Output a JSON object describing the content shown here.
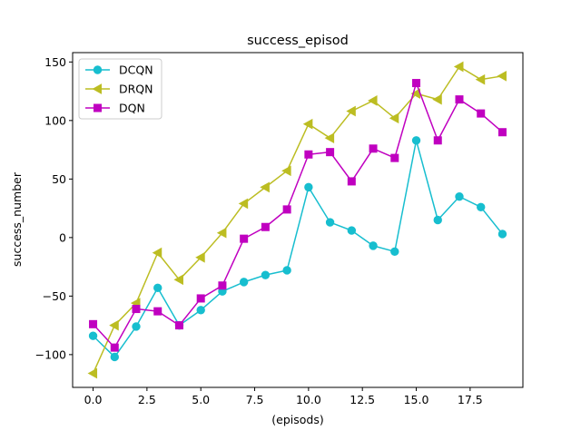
{
  "chart_data": {
    "type": "line",
    "title": "success_episod",
    "xlabel": "(episods)",
    "ylabel": "success_number",
    "x": [
      0,
      1,
      2,
      3,
      4,
      5,
      6,
      7,
      8,
      9,
      10,
      11,
      12,
      13,
      14,
      15,
      16,
      17,
      18,
      19
    ],
    "xlim": [
      -0.95,
      19.95
    ],
    "ylim": [
      -128,
      158
    ],
    "xticks": [
      0,
      2.5,
      5,
      7.5,
      10,
      12.5,
      15,
      17.5
    ],
    "xtick_labels": [
      "0.0",
      "2.5",
      "5.0",
      "7.5",
      "10.0",
      "12.5",
      "15.0",
      "17.5"
    ],
    "yticks": [
      -100,
      -50,
      0,
      50,
      100,
      150
    ],
    "ytick_labels": [
      "−100",
      "−50",
      "0",
      "50",
      "100",
      "150"
    ],
    "grid": false,
    "legend_position": "top-left",
    "series": [
      {
        "name": "DCQN",
        "color": "#17becf",
        "marker": "circle",
        "values": [
          -84,
          -102,
          -76,
          -43,
          -75,
          -62,
          -46,
          -38,
          -32,
          -28,
          43,
          13,
          6,
          -7,
          -12,
          83,
          15,
          35,
          26,
          3
        ]
      },
      {
        "name": "DRQN",
        "color": "#bcbd22",
        "marker": "triangle-left",
        "values": [
          -116,
          -75,
          -56,
          -13,
          -36,
          -17,
          4,
          29,
          43,
          57,
          97,
          85,
          108,
          117,
          102,
          123,
          118,
          146,
          135,
          138
        ]
      },
      {
        "name": "DQN",
        "color": "#c000c0",
        "marker": "square",
        "values": [
          -74,
          -94,
          -61,
          -63,
          -75,
          -52,
          -41,
          -1,
          9,
          24,
          71,
          73,
          48,
          76,
          68,
          132,
          83,
          118,
          106,
          90
        ]
      }
    ]
  }
}
